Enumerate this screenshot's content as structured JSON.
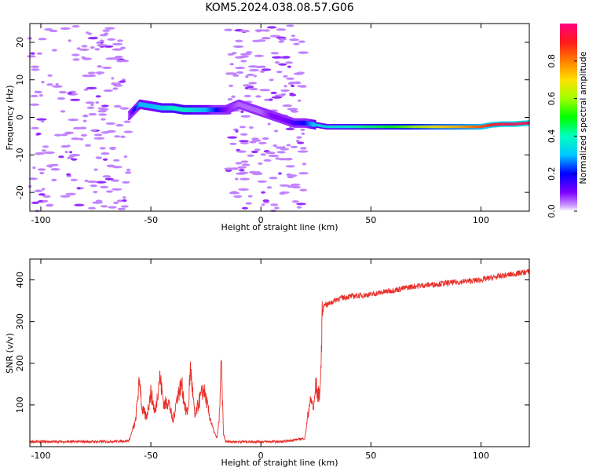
{
  "title": "KOM5.2024.038.08.57.G06",
  "chart_data": [
    {
      "type": "heatmap",
      "xlabel": "Height of straight line (km)",
      "ylabel": "Frequency (Hz)",
      "xlim": [
        -105,
        122
      ],
      "ylim": [
        -25,
        25
      ],
      "xticks": [
        -100,
        -50,
        0,
        50,
        100
      ],
      "yticks": [
        -20,
        -10,
        0,
        10,
        20
      ],
      "colorbar": {
        "label": "Normalized spectral amplitude",
        "ticks": [
          0.0,
          0.2,
          0.4,
          0.6,
          0.8
        ],
        "range": [
          0,
          1
        ],
        "colormap": "gist_rainbow_r"
      },
      "ridge": {
        "x": [
          -60,
          -55,
          -50,
          -45,
          -40,
          -35,
          -30,
          -25,
          -20,
          -16,
          -10,
          -5,
          0,
          5,
          10,
          15,
          20,
          25,
          30,
          40,
          50,
          60,
          70,
          80,
          90,
          100,
          105,
          110,
          115,
          122
        ],
        "freq": [
          0.5,
          3.5,
          3.0,
          2.5,
          2.5,
          2.0,
          2.0,
          2.0,
          2.0,
          2.0,
          3.5,
          2.5,
          1.5,
          0.5,
          -0.5,
          -1.5,
          -1.5,
          -2.0,
          -2.5,
          -2.5,
          -2.5,
          -2.5,
          -2.5,
          -2.5,
          -2.5,
          -2.5,
          -2.0,
          -1.8,
          -1.8,
          -1.5
        ],
        "amplitude": [
          0.05,
          0.3,
          0.3,
          0.35,
          0.4,
          0.4,
          0.35,
          0.3,
          0.2,
          0.1,
          0.05,
          0.05,
          0.05,
          0.1,
          0.1,
          0.15,
          0.2,
          0.35,
          0.35,
          0.4,
          0.45,
          0.5,
          0.6,
          0.7,
          0.75,
          0.85,
          0.9,
          0.95,
          0.95,
          0.95
        ]
      }
    },
    {
      "type": "line",
      "xlabel": "Height of straight line (km)",
      "ylabel": "SNR (v/v)",
      "xlim": [
        -105,
        122
      ],
      "ylim": [
        0,
        450
      ],
      "xticks": [
        -100,
        -50,
        0,
        50,
        100
      ],
      "yticks": [
        100,
        200,
        300,
        400
      ],
      "color": "#e8302a",
      "series": [
        {
          "x": [
            -105,
            -90,
            -70,
            -60,
            -57,
            -56,
            -55,
            -54,
            -52,
            -50,
            -48,
            -46,
            -44,
            -42,
            -40,
            -38,
            -36,
            -34,
            -33,
            -32,
            -30,
            -28,
            -26,
            -24,
            -22,
            -20,
            -19,
            -18,
            -17,
            -16,
            -10,
            0,
            10,
            20,
            22,
            23,
            24,
            25,
            26,
            27,
            28,
            29,
            30,
            35,
            40,
            50,
            60,
            70,
            80,
            90,
            100,
            110,
            122
          ],
          "values": [
            12,
            12,
            12,
            14,
            60,
            120,
            160,
            90,
            70,
            130,
            80,
            170,
            100,
            110,
            60,
            120,
            150,
            80,
            90,
            190,
            70,
            110,
            140,
            90,
            45,
            20,
            60,
            200,
            30,
            12,
            12,
            12,
            12,
            20,
            100,
            110,
            90,
            150,
            120,
            140,
            320,
            345,
            340,
            355,
            360,
            365,
            375,
            385,
            390,
            395,
            400,
            410,
            420
          ]
        }
      ]
    }
  ]
}
